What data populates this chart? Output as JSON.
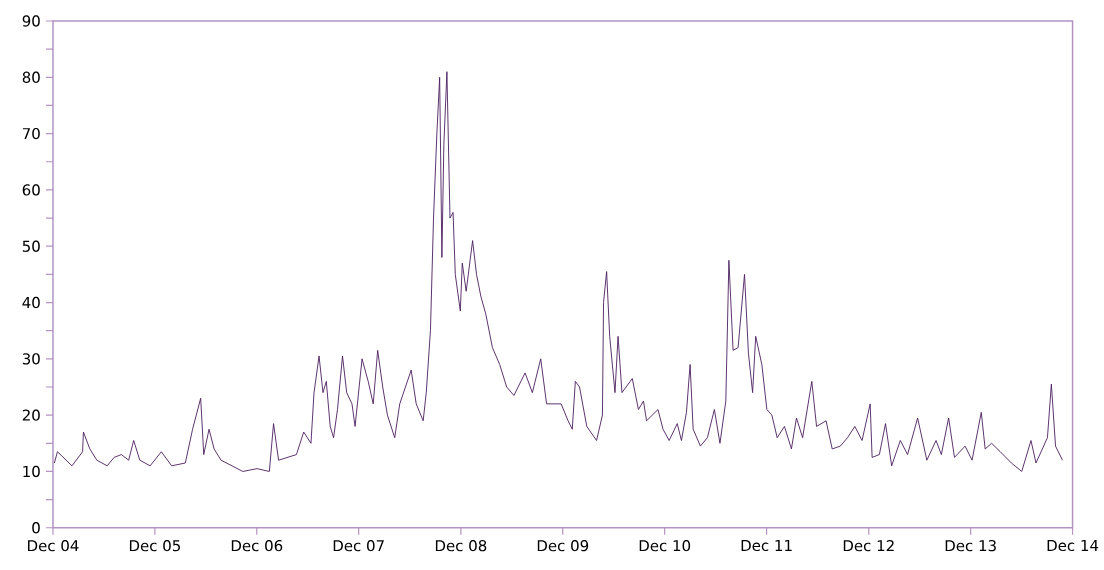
{
  "chart_data": {
    "type": "line",
    "color": "#4b1e5f",
    "x": [
      "2004-12-06",
      "2004-12-17",
      "2005-02-07",
      "2005-03-17",
      "2005-03-20",
      "2005-04-12",
      "2005-05-07",
      "2005-06-13",
      "2005-07-08",
      "2005-08-03",
      "2005-08-29",
      "2005-09-16",
      "2005-10-08",
      "2005-11-14",
      "2005-12-24",
      "2006-01-30",
      "2006-03-20",
      "2006-04-15",
      "2006-05-14",
      "2006-05-25",
      "2006-06-13",
      "2006-07-01",
      "2006-07-26",
      "2006-10-12",
      "2006-12-02",
      "2007-01-15",
      "2007-01-30",
      "2007-02-17",
      "2007-04-22",
      "2007-05-18",
      "2007-06-13",
      "2007-06-24",
      "2007-07-12",
      "2007-07-26",
      "2007-08-07",
      "2007-08-21",
      "2007-09-02",
      "2007-09-16",
      "2007-10-04",
      "2007-10-19",
      "2007-11-07",
      "2007-11-18",
      "2007-12-13",
      "2008-01-04",
      "2008-01-22",
      "2008-02-07",
      "2008-02-25",
      "2008-03-13",
      "2008-04-08",
      "2008-04-26",
      "2008-06-06",
      "2008-06-24",
      "2008-07-19",
      "2008-07-30",
      "2008-08-14",
      "2008-08-25",
      "2008-09-06",
      "2008-09-16",
      "2008-09-24",
      "2008-10-01",
      "2008-10-12",
      "2008-10-23",
      "2008-11-03",
      "2008-11-11",
      "2008-11-29",
      "2008-12-06",
      "2008-12-20",
      "2009-01-12",
      "2009-01-26",
      "2009-02-11",
      "2009-02-28",
      "2009-03-24",
      "2009-04-19",
      "2009-05-14",
      "2009-06-09",
      "2009-07-19",
      "2009-08-14",
      "2009-09-13",
      "2009-10-04",
      "2009-11-25",
      "2009-12-20",
      "2010-01-04",
      "2010-01-15",
      "2010-01-30",
      "2010-02-25",
      "2010-04-01",
      "2010-04-22",
      "2010-04-26",
      "2010-05-07",
      "2010-05-18",
      "2010-06-06",
      "2010-06-17",
      "2010-07-01",
      "2010-08-07",
      "2010-08-29",
      "2010-09-16",
      "2010-09-27",
      "2010-11-07",
      "2010-11-25",
      "2010-12-17",
      "2011-01-15",
      "2011-01-30",
      "2011-02-17",
      "2011-03-02",
      "2011-03-13",
      "2011-04-08",
      "2011-05-03",
      "2011-05-28",
      "2011-06-17",
      "2011-07-08",
      "2011-07-19",
      "2011-08-03",
      "2011-08-21",
      "2011-09-13",
      "2011-09-27",
      "2011-10-12",
      "2011-10-23",
      "2011-11-14",
      "2011-12-02",
      "2011-12-20",
      "2012-01-08",
      "2012-02-03",
      "2012-02-28",
      "2012-03-17",
      "2012-04-08",
      "2012-05-11",
      "2012-05-28",
      "2012-07-01",
      "2012-07-23",
      "2012-08-21",
      "2012-09-16",
      "2012-10-12",
      "2012-11-07",
      "2012-12-06",
      "2012-12-13",
      "2013-01-08",
      "2013-01-30",
      "2013-02-21",
      "2013-03-24",
      "2013-04-19",
      "2013-05-25",
      "2013-06-27",
      "2013-07-30",
      "2013-08-18",
      "2013-09-13",
      "2013-10-04",
      "2013-11-11",
      "2013-12-06",
      "2014-01-08",
      "2014-01-22",
      "2014-02-14",
      "2014-03-17",
      "2014-04-26",
      "2014-06-02",
      "2014-07-05",
      "2014-07-23",
      "2014-09-02",
      "2014-09-16",
      "2014-10-01",
      "2014-10-26"
    ],
    "values": [
      11.5,
      13.5,
      11,
      13.5,
      17,
      14,
      12,
      11,
      12.5,
      13,
      12,
      15.5,
      12,
      11,
      13.5,
      11,
      11.5,
      17.5,
      23,
      13,
      17.5,
      14,
      12,
      10,
      10.5,
      10,
      18.5,
      12,
      13,
      17,
      15,
      24,
      30.5,
      24,
      26,
      18,
      16,
      21,
      30.5,
      24,
      22,
      18,
      30,
      26,
      22,
      31.5,
      25,
      20,
      16,
      22,
      28,
      22,
      19,
      24,
      35,
      55,
      70,
      80,
      48,
      68,
      81,
      55,
      56,
      45,
      38.5,
      47,
      42,
      51,
      45,
      41,
      38,
      32,
      29,
      25,
      23.5,
      27.5,
      24,
      30,
      22,
      22,
      19,
      17.5,
      26,
      25,
      18,
      15.5,
      20,
      40,
      45.5,
      34,
      24,
      34,
      24,
      26.5,
      21,
      22.5,
      19,
      21,
      17.5,
      15.5,
      18.5,
      15.5,
      20.5,
      29,
      17.5,
      14.5,
      16,
      21,
      15,
      22.5,
      47.5,
      31.5,
      32,
      45,
      31,
      24,
      34,
      29,
      21,
      20,
      16,
      18,
      14,
      19.5,
      16,
      26,
      18,
      19,
      14,
      14.5,
      16,
      18,
      15.5,
      22,
      12.5,
      13,
      18.5,
      11,
      15.5,
      13,
      19.5,
      12,
      15.5,
      13,
      19.5,
      12.5,
      14.5,
      12,
      20.5,
      14,
      15,
      13.5,
      11.5,
      10,
      15.5,
      11.5,
      16,
      25.5,
      14.5,
      12
    ],
    "xlim": [
      "2004-12-01",
      "2014-12-01"
    ],
    "xticks": [
      {
        "value": "2004-12-01",
        "label": "Dec 04"
      },
      {
        "value": "2005-12-01",
        "label": "Dec 05"
      },
      {
        "value": "2006-12-01",
        "label": "Dec 06"
      },
      {
        "value": "2007-12-01",
        "label": "Dec 07"
      },
      {
        "value": "2008-12-01",
        "label": "Dec 08"
      },
      {
        "value": "2009-12-01",
        "label": "Dec 09"
      },
      {
        "value": "2010-12-01",
        "label": "Dec 10"
      },
      {
        "value": "2011-12-01",
        "label": "Dec 11"
      },
      {
        "value": "2012-12-01",
        "label": "Dec 12"
      },
      {
        "value": "2013-12-01",
        "label": "Dec 13"
      },
      {
        "value": "2014-12-01",
        "label": "Dec 14"
      }
    ],
    "ylim": [
      0,
      90
    ],
    "yticks": [
      0,
      {
        "value": 5,
        "label": null
      },
      10,
      {
        "value": 15,
        "label": null
      },
      20,
      {
        "value": 25,
        "label": null
      },
      30,
      {
        "value": 35,
        "label": null
      },
      40,
      {
        "value": 45,
        "label": null
      },
      50,
      {
        "value": 55,
        "label": null
      },
      60,
      {
        "value": 65,
        "label": null
      },
      70,
      {
        "value": 75,
        "label": null
      },
      80,
      {
        "value": 85,
        "label": null
      },
      90
    ],
    "grid": false
  }
}
